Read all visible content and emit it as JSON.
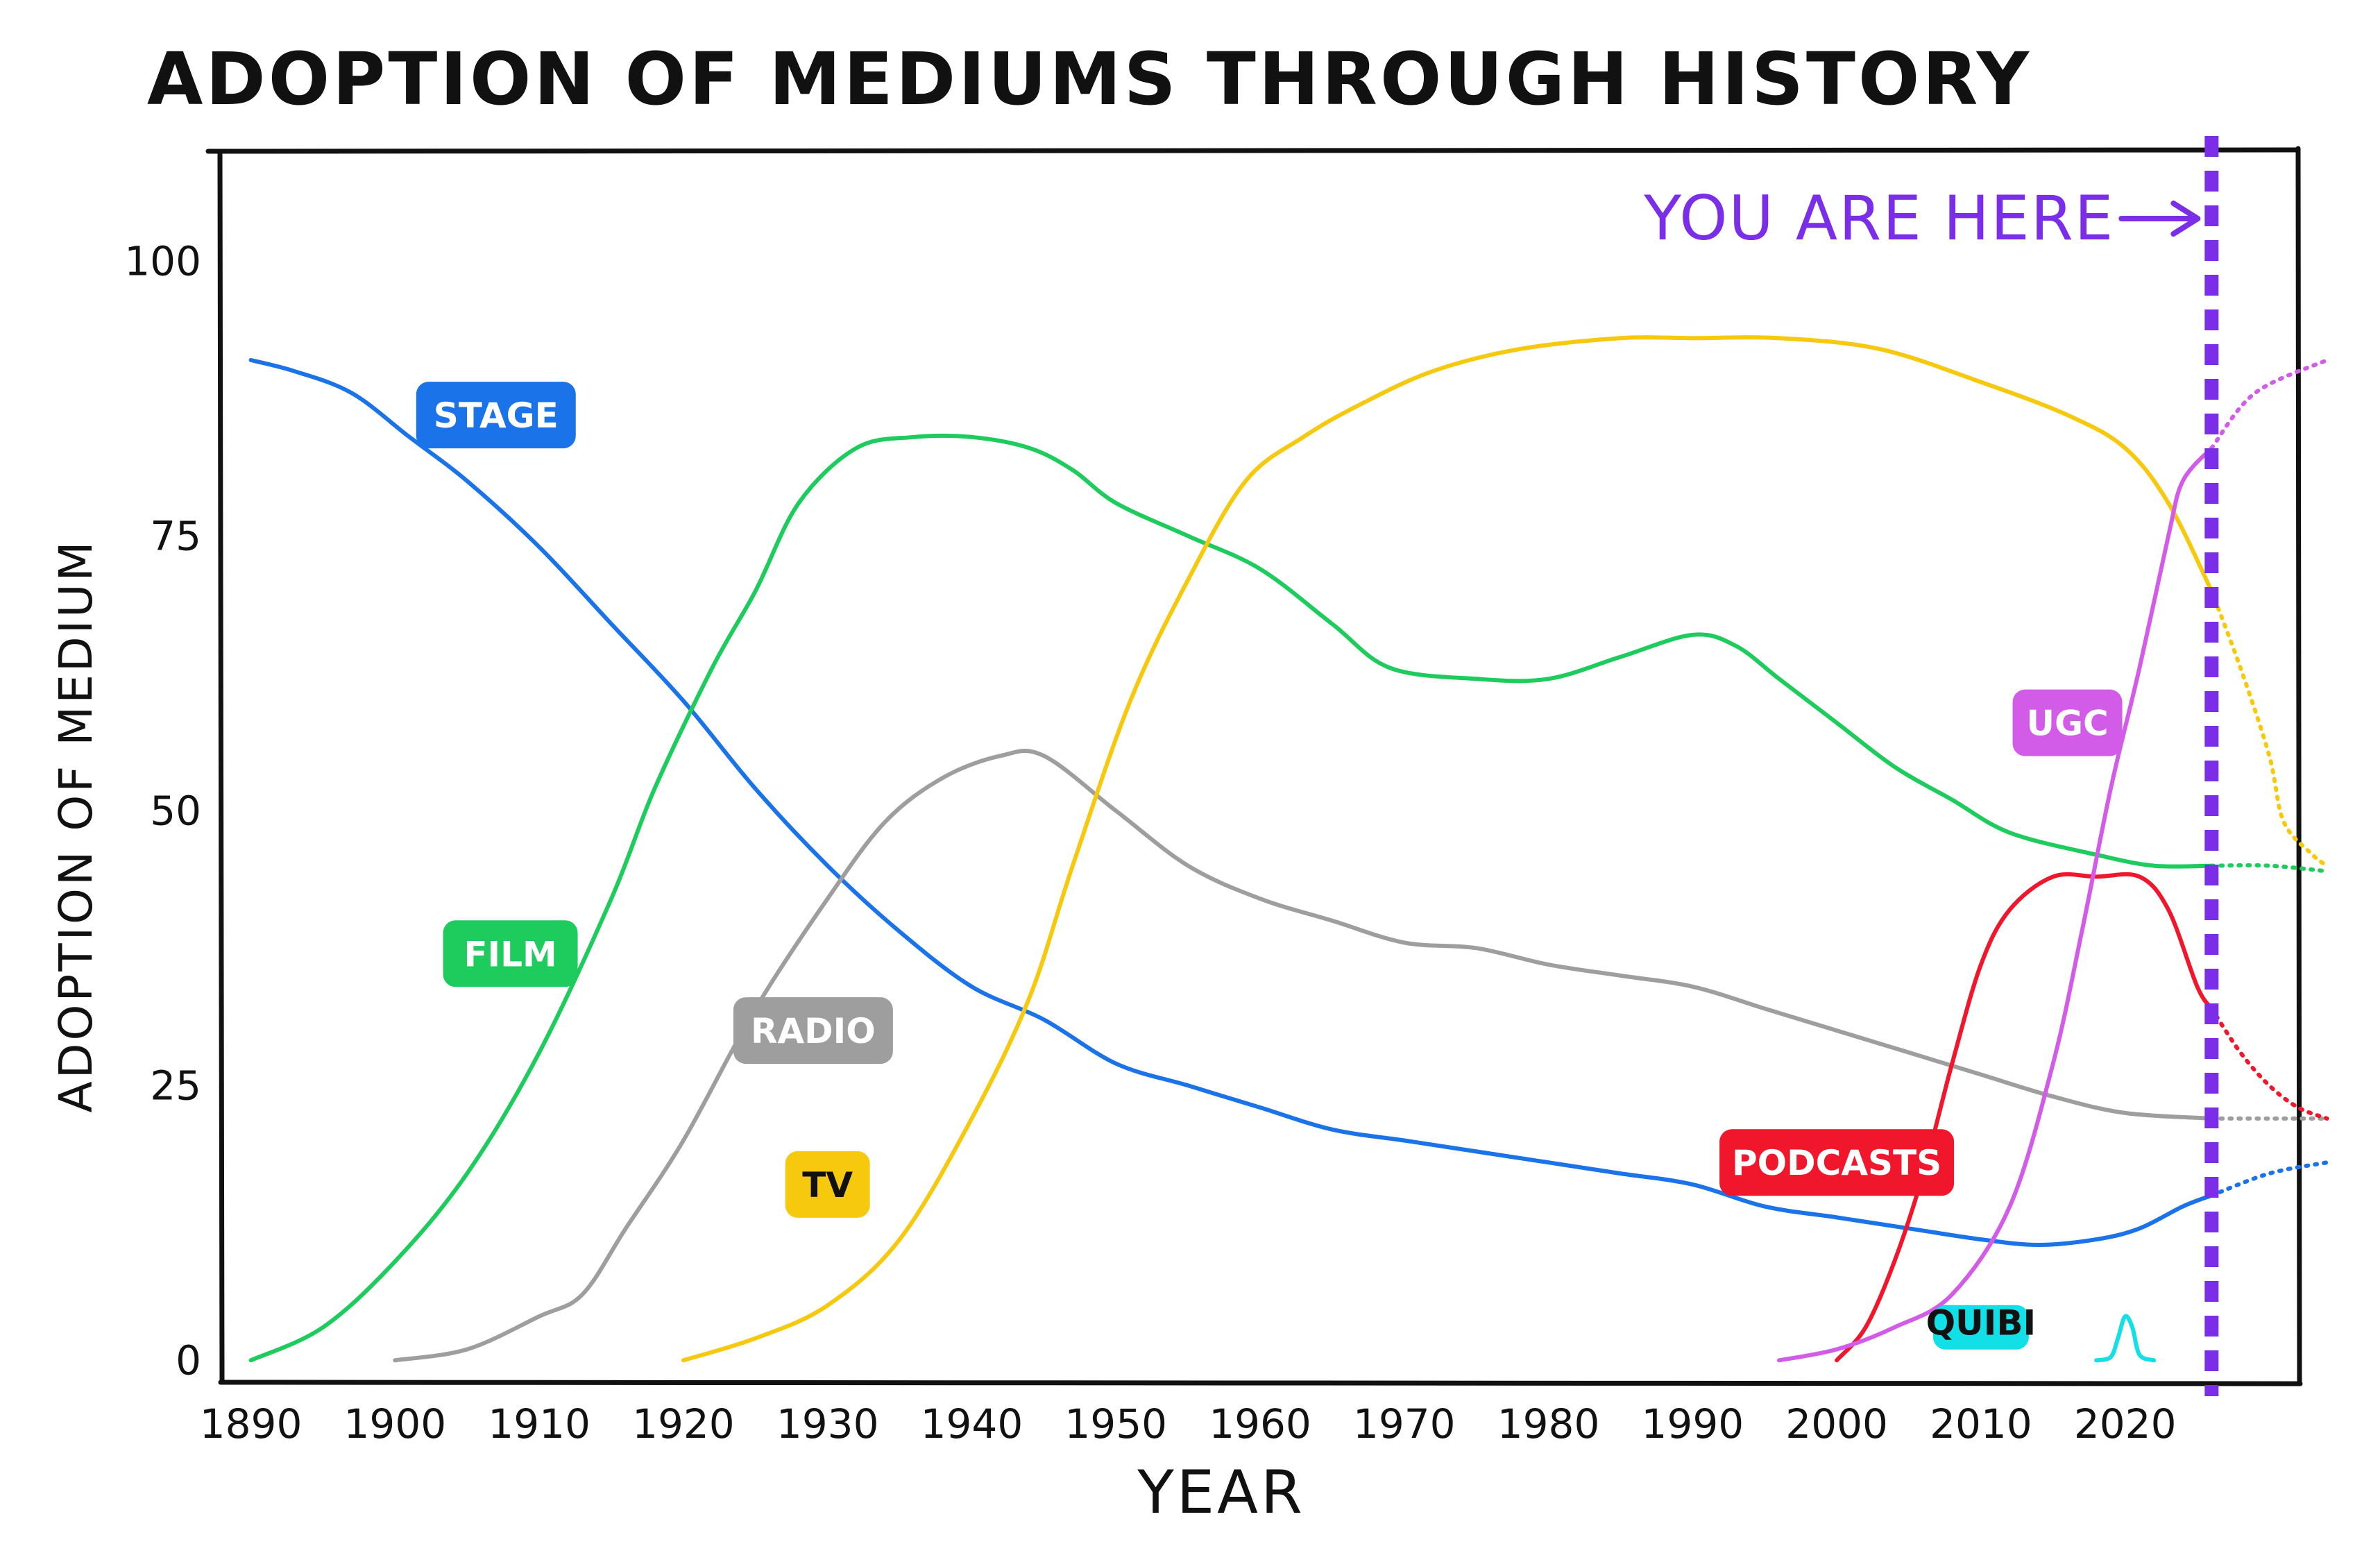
{
  "chart_data": {
    "type": "line",
    "title": "ADOPTION OF MEDIUMS THROUGH HISTORY",
    "xlabel": "YEAR",
    "ylabel": "ADOPTION OF MEDIUM",
    "xlim": [
      1888,
      2032
    ],
    "ylim": [
      -2,
      110
    ],
    "x_ticks": [
      1890,
      1900,
      1910,
      1920,
      1930,
      1940,
      1950,
      1960,
      1970,
      1980,
      1990,
      2000,
      2010,
      2020
    ],
    "y_ticks": [
      0,
      25,
      50,
      75,
      100
    ],
    "grid": false,
    "annotation": {
      "text": "YOU ARE HERE",
      "x": 2026,
      "color": "#7a2ee8"
    },
    "series": [
      {
        "name": "STAGE",
        "color": "#1a73e8",
        "label_text_color": "#ffffff",
        "label_at": [
          1907,
          86
        ],
        "points": [
          [
            1890,
            91
          ],
          [
            1893,
            90
          ],
          [
            1897,
            88
          ],
          [
            1901,
            84
          ],
          [
            1905,
            80
          ],
          [
            1910,
            74
          ],
          [
            1915,
            67
          ],
          [
            1920,
            60
          ],
          [
            1925,
            52
          ],
          [
            1930,
            45
          ],
          [
            1935,
            39
          ],
          [
            1940,
            34
          ],
          [
            1945,
            31
          ],
          [
            1950,
            27
          ],
          [
            1955,
            25
          ],
          [
            1960,
            23
          ],
          [
            1965,
            21
          ],
          [
            1970,
            20
          ],
          [
            1975,
            19
          ],
          [
            1980,
            18
          ],
          [
            1985,
            17
          ],
          [
            1990,
            16
          ],
          [
            1995,
            14
          ],
          [
            2000,
            13
          ],
          [
            2005,
            12
          ],
          [
            2010,
            11
          ],
          [
            2014,
            10.5
          ],
          [
            2018,
            11
          ],
          [
            2021,
            12
          ],
          [
            2024,
            14
          ],
          [
            2026,
            15
          ]
        ],
        "forecast": [
          [
            2026,
            15
          ],
          [
            2030,
            17
          ],
          [
            2034,
            18
          ]
        ]
      },
      {
        "name": "FILM",
        "color": "#1dcc5c",
        "label_text_color": "#ffffff",
        "label_at": [
          1908,
          37
        ],
        "points": [
          [
            1890,
            0
          ],
          [
            1895,
            3
          ],
          [
            1900,
            9
          ],
          [
            1905,
            17
          ],
          [
            1910,
            28
          ],
          [
            1915,
            42
          ],
          [
            1918,
            52
          ],
          [
            1922,
            63
          ],
          [
            1925,
            70
          ],
          [
            1928,
            78
          ],
          [
            1932,
            83
          ],
          [
            1936,
            84
          ],
          [
            1940,
            84
          ],
          [
            1944,
            83
          ],
          [
            1947,
            81
          ],
          [
            1950,
            78
          ],
          [
            1955,
            75
          ],
          [
            1960,
            72
          ],
          [
            1965,
            67
          ],
          [
            1969,
            63
          ],
          [
            1975,
            62
          ],
          [
            1980,
            62
          ],
          [
            1985,
            64
          ],
          [
            1990,
            66
          ],
          [
            1993,
            65
          ],
          [
            1996,
            62
          ],
          [
            2000,
            58
          ],
          [
            2004,
            54
          ],
          [
            2008,
            51
          ],
          [
            2012,
            48
          ],
          [
            2018,
            46
          ],
          [
            2022,
            45
          ],
          [
            2026,
            45
          ]
        ],
        "forecast": [
          [
            2026,
            45
          ],
          [
            2030,
            45
          ],
          [
            2034,
            44.5
          ]
        ]
      },
      {
        "name": "RADIO",
        "color": "#9e9e9e",
        "label_text_color": "#ffffff",
        "label_at": [
          1929,
          30
        ],
        "points": [
          [
            1900,
            0
          ],
          [
            1905,
            1
          ],
          [
            1910,
            4
          ],
          [
            1913,
            6
          ],
          [
            1916,
            12
          ],
          [
            1920,
            20
          ],
          [
            1925,
            32
          ],
          [
            1930,
            42
          ],
          [
            1934,
            49
          ],
          [
            1938,
            53
          ],
          [
            1942,
            55
          ],
          [
            1945,
            55
          ],
          [
            1950,
            50
          ],
          [
            1955,
            45
          ],
          [
            1960,
            42
          ],
          [
            1965,
            40
          ],
          [
            1970,
            38
          ],
          [
            1975,
            37.5
          ],
          [
            1980,
            36
          ],
          [
            1985,
            35
          ],
          [
            1990,
            34
          ],
          [
            1995,
            32
          ],
          [
            2000,
            30
          ],
          [
            2005,
            28
          ],
          [
            2010,
            26
          ],
          [
            2015,
            24
          ],
          [
            2020,
            22.5
          ],
          [
            2026,
            22
          ]
        ],
        "forecast": [
          [
            2026,
            22
          ],
          [
            2030,
            22
          ],
          [
            2034,
            22
          ]
        ]
      },
      {
        "name": "TV",
        "color": "#f6c90e",
        "label_text_color": "#111111",
        "label_at": [
          1930,
          16
        ],
        "points": [
          [
            1920,
            0
          ],
          [
            1925,
            2
          ],
          [
            1930,
            5
          ],
          [
            1935,
            11
          ],
          [
            1940,
            22
          ],
          [
            1944,
            33
          ],
          [
            1947,
            45
          ],
          [
            1951,
            60
          ],
          [
            1955,
            71
          ],
          [
            1959,
            80
          ],
          [
            1963,
            84
          ],
          [
            1967,
            87
          ],
          [
            1972,
            90
          ],
          [
            1978,
            92
          ],
          [
            1985,
            93
          ],
          [
            1990,
            93
          ],
          [
            1996,
            93
          ],
          [
            2003,
            92
          ],
          [
            2010,
            89
          ],
          [
            2016,
            86
          ],
          [
            2020,
            83
          ],
          [
            2023,
            78
          ],
          [
            2026,
            70
          ]
        ],
        "forecast": [
          [
            2026,
            70
          ],
          [
            2028,
            63
          ],
          [
            2030,
            55
          ],
          [
            2031,
            49
          ],
          [
            2033,
            46
          ],
          [
            2034,
            45
          ]
        ]
      },
      {
        "name": "PODCASTS",
        "color": "#f0162c",
        "label_text_color": "#ffffff",
        "label_at": [
          2000,
          18
        ],
        "points": [
          [
            2000,
            0
          ],
          [
            2002,
            3
          ],
          [
            2004,
            9
          ],
          [
            2006,
            17
          ],
          [
            2008,
            27
          ],
          [
            2010,
            36
          ],
          [
            2012,
            41
          ],
          [
            2015,
            44
          ],
          [
            2018,
            44
          ],
          [
            2021,
            44
          ],
          [
            2023,
            41
          ],
          [
            2025,
            34
          ],
          [
            2026,
            32
          ]
        ],
        "forecast": [
          [
            2026,
            32
          ],
          [
            2028,
            28
          ],
          [
            2030,
            25
          ],
          [
            2032,
            23
          ],
          [
            2034,
            22
          ]
        ]
      },
      {
        "name": "UGC",
        "color": "#d25ce8",
        "label_text_color": "#ffffff",
        "label_at": [
          2016,
          58
        ],
        "points": [
          [
            1996,
            0
          ],
          [
            2000,
            1
          ],
          [
            2004,
            3
          ],
          [
            2008,
            6
          ],
          [
            2012,
            14
          ],
          [
            2015,
            27
          ],
          [
            2017,
            39
          ],
          [
            2019,
            52
          ],
          [
            2021,
            63
          ],
          [
            2023,
            75
          ],
          [
            2024,
            80
          ],
          [
            2026,
            83
          ]
        ],
        "forecast": [
          [
            2026,
            83
          ],
          [
            2029,
            88
          ],
          [
            2034,
            91
          ]
        ]
      },
      {
        "name": "QUIBI",
        "color": "#12e0e6",
        "label_text_color": "#111111",
        "label_at": [
          2010,
          3
        ],
        "points": [
          [
            2018,
            0
          ],
          [
            2019,
            0.3
          ],
          [
            2019.5,
            2
          ],
          [
            2020,
            4
          ],
          [
            2020.5,
            3
          ],
          [
            2021,
            0.5
          ],
          [
            2022,
            0
          ]
        ],
        "forecast": []
      }
    ]
  }
}
